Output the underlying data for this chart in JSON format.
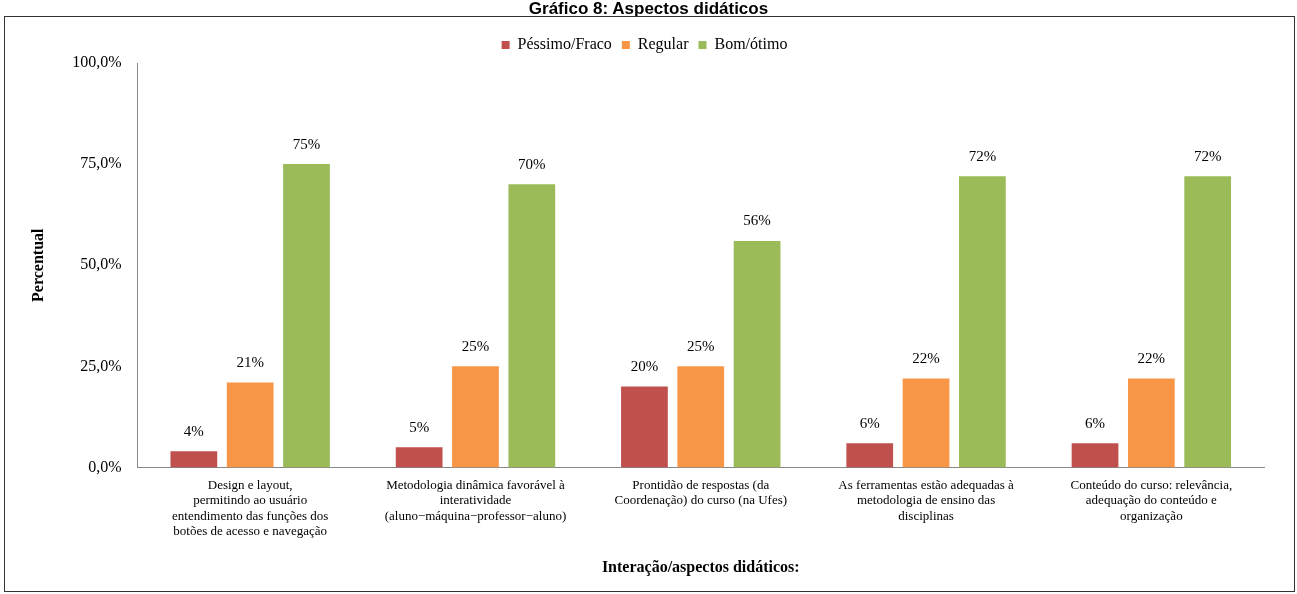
{
  "chart_data": {
    "type": "bar",
    "title": "Gráfico 8: Aspectos didáticos",
    "xlabel": "Interação/aspectos didáticos:",
    "ylabel": "Percentual",
    "categories": [
      "Design e layout,\npermitindo ao usuário\nentendimento das funções dos\nbotões de acesso e navegação",
      "Metodologia dinâmica favorável à\ninteratividade\n(aluno−máquina−professor−aluno)",
      "Prontidão de respostas (da\nCoordenação) do curso (na Ufes)",
      "As ferramentas estão adequadas à\nmetodologia de ensino das\ndisciplinas",
      "Conteúdo do curso: relevância,\nadequação do conteúdo e\norganização"
    ],
    "series": [
      {
        "name": "Péssimo/Fraco",
        "color": "#c0504d",
        "values": [
          4,
          5,
          20,
          6,
          6
        ],
        "value_labels": [
          "4%",
          "5%",
          "20%",
          "6%",
          "6%"
        ]
      },
      {
        "name": "Regular",
        "color": "#f79646",
        "values": [
          21,
          25,
          25,
          22,
          22
        ],
        "value_labels": [
          "21%",
          "25%",
          "25%",
          "22%",
          "22%"
        ]
      },
      {
        "name": "Bom/ótimo",
        "color": "#9bbb59",
        "values": [
          75,
          70,
          56,
          72,
          72
        ],
        "value_labels": [
          "75%",
          "70%",
          "56%",
          "72%",
          "72%"
        ]
      }
    ],
    "ylim": [
      0,
      100
    ],
    "yticks": [
      {
        "value": 0,
        "label": "0,0%"
      },
      {
        "value": 25,
        "label": "25,0%"
      },
      {
        "value": 50,
        "label": "50,0%"
      },
      {
        "value": 75,
        "label": "75,0%"
      },
      {
        "value": 100,
        "label": "100,0%"
      }
    ],
    "legend": "top",
    "grid": false
  }
}
